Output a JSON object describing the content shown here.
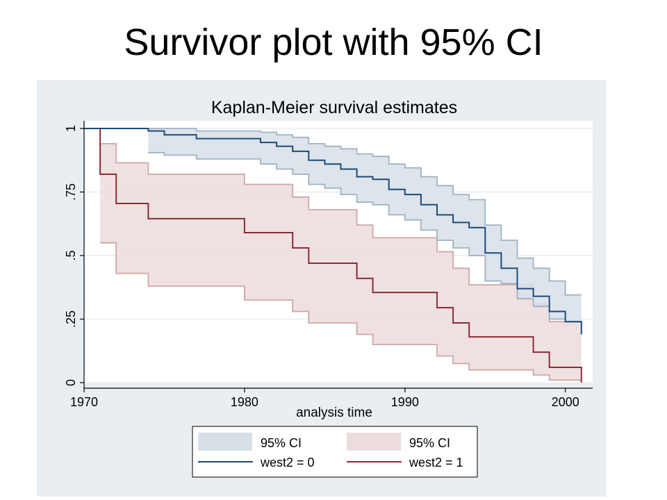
{
  "slide": {
    "title": "Survivor plot with 95% CI"
  },
  "chart_data": {
    "type": "line",
    "step": true,
    "title": "Kaplan-Meier survival estimates",
    "xlabel": "analysis time",
    "ylabel": "",
    "xlim": [
      1970,
      2001.7
    ],
    "ylim": [
      0,
      1.03
    ],
    "xticks": [
      1970,
      1980,
      1990,
      2000
    ],
    "xtick_labels": [
      "1970",
      "1980",
      "1990",
      "2000"
    ],
    "yticks": [
      0,
      0.25,
      0.5,
      0.75,
      1
    ],
    "ytick_labels": [
      "0",
      ".25",
      ".5",
      ".75",
      "1"
    ],
    "grid": true,
    "legend": {
      "position": "bottom",
      "entries": [
        "95% CI",
        "95% CI",
        "west2 = 0",
        "west2 = 1"
      ]
    },
    "colors": {
      "group0_line": "#1a4a7a",
      "group0_ci_fill": "#d8dfe7",
      "group0_ci_edge": "#9db2c4",
      "group1_line": "#8b2a33",
      "group1_ci_fill": "#ecdcdc",
      "group1_ci_edge": "#cfa5a6",
      "title": "#1a4a7a"
    },
    "series": [
      {
        "name": "west2 = 0",
        "x": [
          1970,
          1974,
          1975,
          1977,
          1981,
          1982,
          1983,
          1984,
          1985,
          1986,
          1987,
          1988,
          1989,
          1990,
          1991,
          1992,
          1993,
          1994,
          1995,
          1996,
          1997,
          1998,
          1999,
          2000,
          2001
        ],
        "y": [
          1.0,
          0.99,
          0.975,
          0.96,
          0.945,
          0.93,
          0.91,
          0.875,
          0.86,
          0.84,
          0.81,
          0.8,
          0.76,
          0.74,
          0.7,
          0.66,
          0.63,
          0.61,
          0.51,
          0.45,
          0.37,
          0.34,
          0.28,
          0.24,
          0.19
        ],
        "ci_x": [
          1974,
          1975,
          1977,
          1981,
          1982,
          1983,
          1984,
          1985,
          1986,
          1987,
          1988,
          1989,
          1990,
          1991,
          1992,
          1993,
          1994,
          1995,
          1996,
          1997,
          1998,
          1999,
          2000,
          2001
        ],
        "ci_lower": [
          0.905,
          0.895,
          0.88,
          0.86,
          0.84,
          0.82,
          0.78,
          0.765,
          0.74,
          0.71,
          0.7,
          0.66,
          0.64,
          0.6,
          0.56,
          0.53,
          0.5,
          0.4,
          0.39,
          0.33,
          0.3,
          0.25,
          0.24,
          0.24
        ],
        "ci_upper": [
          1.0,
          1.0,
          0.99,
          0.985,
          0.975,
          0.965,
          0.94,
          0.93,
          0.92,
          0.9,
          0.89,
          0.86,
          0.845,
          0.81,
          0.775,
          0.74,
          0.72,
          0.62,
          0.56,
          0.49,
          0.45,
          0.4,
          0.345,
          0.345
        ]
      },
      {
        "name": "west2 = 1",
        "x": [
          1970,
          1971,
          1972,
          1974,
          1980,
          1983,
          1984,
          1987,
          1988,
          1992,
          1993,
          1994,
          1998,
          1999,
          2001
        ],
        "y": [
          1.0,
          0.82,
          0.705,
          0.645,
          0.59,
          0.53,
          0.47,
          0.41,
          0.355,
          0.295,
          0.235,
          0.18,
          0.12,
          0.06,
          0.0
        ],
        "ci_x": [
          1971,
          1972,
          1974,
          1980,
          1983,
          1984,
          1987,
          1988,
          1992,
          1993,
          1994,
          1998,
          1999,
          2001
        ],
        "ci_lower": [
          0.55,
          0.43,
          0.38,
          0.325,
          0.28,
          0.235,
          0.19,
          0.15,
          0.105,
          0.075,
          0.05,
          0.03,
          0.01,
          0.01
        ],
        "ci_upper": [
          0.94,
          0.865,
          0.82,
          0.78,
          0.73,
          0.68,
          0.62,
          0.57,
          0.515,
          0.45,
          0.385,
          0.31,
          0.24,
          0.24
        ]
      }
    ]
  }
}
